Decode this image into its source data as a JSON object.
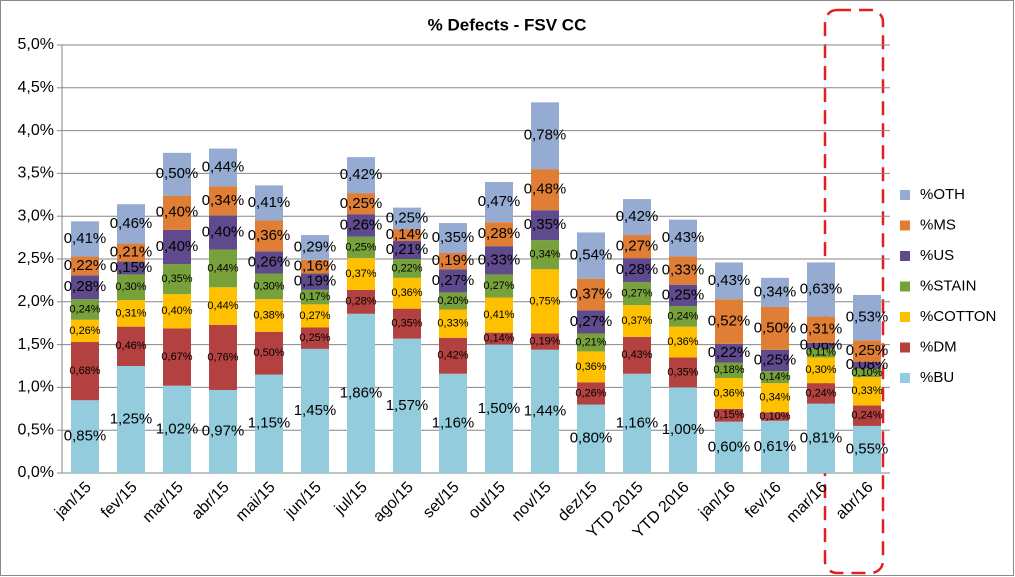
{
  "chart_data": {
    "type": "stacked_bar",
    "title": "% Defects - FSV CC",
    "categories": [
      "jan/15",
      "fev/15",
      "mar/15",
      "abr/15",
      "mai/15",
      "jun/15",
      "jul/15",
      "ago/15",
      "set/15",
      "out/15",
      "nov/15",
      "dez/15",
      "YTD 2015",
      "YTD 2016",
      "jan/16",
      "fev/16",
      "mar/16",
      "abr/16"
    ],
    "series": [
      {
        "name": "%BU",
        "color": "#93cddd",
        "values": [
          0.85,
          1.25,
          1.02,
          0.97,
          1.15,
          1.45,
          1.86,
          1.57,
          1.16,
          1.5,
          1.44,
          0.8,
          1.16,
          1.0,
          0.6,
          0.61,
          0.81,
          0.55
        ],
        "value_labels": [
          "0,85%",
          "1,25%",
          "1,02%",
          "0,97%",
          "1,15%",
          "1,45%",
          "1,86%",
          "1,57%",
          "1,16%",
          "1,50%",
          "1,44%",
          "0,80%",
          "1,16%",
          "1,00%",
          "0,60%",
          "0,61%",
          "0,81%",
          "0,55%"
        ]
      },
      {
        "name": "%DM",
        "color": "#b3413f",
        "values": [
          0.68,
          0.46,
          0.67,
          0.76,
          0.5,
          0.25,
          0.28,
          0.35,
          0.42,
          0.14,
          0.19,
          0.26,
          0.43,
          0.35,
          0.15,
          0.1,
          0.24,
          0.24
        ],
        "value_labels": [
          "0,68%",
          "0,46%",
          "0,67%",
          "0,76%",
          "0,50%",
          "0,25%",
          "0,28%",
          "0,35%",
          "0,42%",
          "0,14%",
          "0,19%",
          "0,26%",
          "0,43%",
          "0,35%",
          "0,15%",
          "0,10%",
          "0,24%",
          "0,24%"
        ]
      },
      {
        "name": "%COTTON",
        "color": "#ffc000",
        "values": [
          0.26,
          0.31,
          0.4,
          0.44,
          0.38,
          0.27,
          0.37,
          0.36,
          0.33,
          0.41,
          0.75,
          0.36,
          0.37,
          0.36,
          0.36,
          0.34,
          0.3,
          0.33
        ],
        "value_labels": [
          "0,26%",
          "0,31%",
          "0,40%",
          "0,44%",
          "0,38%",
          "0,27%",
          "0,37%",
          "0,36%",
          "0,33%",
          "0,41%",
          "0,75%",
          "0,36%",
          "0,37%",
          "0,36%",
          "0,36%",
          "0,34%",
          "0,30%",
          "0,33%"
        ]
      },
      {
        "name": "%STAIN",
        "color": "#77a13a",
        "values": [
          0.24,
          0.3,
          0.35,
          0.44,
          0.3,
          0.17,
          0.25,
          0.22,
          0.2,
          0.27,
          0.34,
          0.21,
          0.27,
          0.24,
          0.18,
          0.14,
          0.11,
          0.1
        ],
        "value_labels": [
          "0,24%",
          "0,30%",
          "0,35%",
          "0,44%",
          "0,30%",
          "0,17%",
          "0,25%",
          "0,22%",
          "0,20%",
          "0,27%",
          "0,34%",
          "0,21%",
          "0,27%",
          "0,24%",
          "0,18%",
          "0,14%",
          "0,11%",
          "0,10%"
        ]
      },
      {
        "name": "%US",
        "color": "#5e4a8c",
        "values": [
          0.28,
          0.15,
          0.4,
          0.4,
          0.26,
          0.19,
          0.26,
          0.21,
          0.27,
          0.33,
          0.35,
          0.27,
          0.28,
          0.25,
          0.22,
          0.25,
          0.06,
          0.08
        ],
        "value_labels": [
          "0,28%",
          "0,15%",
          "0,40%",
          "0,40%",
          "0,26%",
          "0,19%",
          "0,26%",
          "0,21%",
          "0,27%",
          "0,33%",
          "0,35%",
          "0,27%",
          "0,28%",
          "0,25%",
          "0,22%",
          "0,25%",
          "0,06%",
          "0,08%"
        ]
      },
      {
        "name": "%MS",
        "color": "#e07e36",
        "values": [
          0.22,
          0.21,
          0.4,
          0.34,
          0.36,
          0.16,
          0.25,
          0.14,
          0.19,
          0.28,
          0.48,
          0.37,
          0.27,
          0.33,
          0.52,
          0.5,
          0.31,
          0.25
        ],
        "value_labels": [
          "0,22%",
          "0,21%",
          "0,40%",
          "0,34%",
          "0,36%",
          "0,16%",
          "0,25%",
          "0,14%",
          "0,19%",
          "0,28%",
          "0,48%",
          "0,37%",
          "0,27%",
          "0,33%",
          "0,52%",
          "0,50%",
          "0,31%",
          "0,25%"
        ]
      },
      {
        "name": "%OTH",
        "color": "#95abd1",
        "values": [
          0.41,
          0.46,
          0.5,
          0.44,
          0.41,
          0.29,
          0.42,
          0.25,
          0.35,
          0.47,
          0.78,
          0.54,
          0.42,
          0.43,
          0.43,
          0.34,
          0.63,
          0.53
        ],
        "value_labels": [
          "0,41%",
          "0,46%",
          "0,50%",
          "0,44%",
          "0,41%",
          "0,29%",
          "0,42%",
          "0,25%",
          "0,35%",
          "0,47%",
          "0,78%",
          "0,54%",
          "0,42%",
          "0,43%",
          "0,43%",
          "0,34%",
          "0,63%",
          "0,53%"
        ]
      }
    ],
    "ylim": [
      0,
      5
    ],
    "yticks": [
      {
        "value": 0,
        "label": "0,0%"
      },
      {
        "value": 0.5,
        "label": "0,5%"
      },
      {
        "value": 1,
        "label": "1,0%"
      },
      {
        "value": 1.5,
        "label": "1,5%"
      },
      {
        "value": 2,
        "label": "2,0%"
      },
      {
        "value": 2.5,
        "label": "2,5%"
      },
      {
        "value": 3,
        "label": "3,0%"
      },
      {
        "value": 3.5,
        "label": "3,5%"
      },
      {
        "value": 4,
        "label": "4,0%"
      },
      {
        "value": 4.5,
        "label": "4,5%"
      },
      {
        "value": 5,
        "label": "5,0%"
      }
    ],
    "grid": true,
    "legend": "right"
  }
}
